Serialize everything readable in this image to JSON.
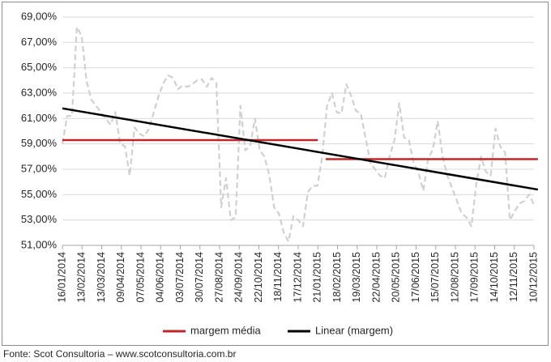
{
  "chart_data": {
    "type": "line",
    "title": "",
    "xlabel": "",
    "ylabel": "",
    "ylim": [
      51,
      69
    ],
    "y_ticks": [
      51,
      53,
      55,
      57,
      59,
      61,
      63,
      65,
      67,
      69
    ],
    "y_tick_labels": [
      "51,00%",
      "53,00%",
      "55,00%",
      "57,00%",
      "59,00%",
      "61,00%",
      "63,00%",
      "65,00%",
      "67,00%",
      "69,00%"
    ],
    "x_tick_labels": [
      "16/01/2014",
      "13/02/2014",
      "13/03/2014",
      "09/04/2014",
      "07/05/2014",
      "04/06/2014",
      "03/07/2014",
      "30/07/2014",
      "27/08/2014",
      "24/09/2014",
      "22/10/2014",
      "18/11/2014",
      "17/12/2014",
      "21/01/2015",
      "18/02/2015",
      "19/03/2015",
      "22/04/2015",
      "20/05/2015",
      "17/06/2015",
      "15/07/2015",
      "12/08/2015",
      "17/09/2015",
      "14/10/2015",
      "12/11/2015",
      "10/12/2015"
    ],
    "grid": "horizontal",
    "legend_position": "bottom",
    "series": [
      {
        "name": "",
        "style": "dashed",
        "color": "#d0d0d0",
        "values": [
          59.0,
          61.2,
          61.2,
          68.2,
          67.5,
          64.0,
          62.5,
          62.0,
          61.5,
          61.0,
          60.5,
          61.5,
          59.0,
          58.8,
          56.5,
          60.3,
          59.8,
          59.6,
          60.2,
          61.5,
          62.8,
          63.8,
          64.4,
          64.2,
          63.3,
          63.6,
          63.5,
          63.7,
          64.0,
          64.1,
          63.5,
          64.2,
          63.8,
          54.0,
          56.3,
          53.0,
          53.2,
          62.0,
          58.5,
          58.8,
          61.0,
          58.5,
          58.0,
          56.5,
          54.0,
          53.5,
          52.0,
          51.3,
          53.3,
          53.0,
          52.5,
          55.2,
          55.7,
          55.7,
          58.0,
          62.0,
          63.0,
          61.5,
          61.4,
          63.7,
          62.8,
          61.6,
          61.4,
          59.5,
          57.5,
          57.0,
          56.5,
          56.3,
          58.0,
          59.3,
          62.2,
          59.5,
          59.3,
          57.5,
          56.7,
          55.3,
          57.8,
          58.6,
          60.8,
          58.0,
          56.5,
          55.5,
          54.5,
          53.5,
          53.2,
          52.5,
          55.8,
          58.0,
          56.8,
          56.5,
          60.2,
          58.8,
          58.3,
          53.0,
          53.7,
          54.3,
          54.5,
          55.0,
          54.2
        ]
      },
      {
        "name": "margem média",
        "color": "#c0272d",
        "segments": [
          {
            "x_start": 0,
            "x_end": 13,
            "value": 59.3
          },
          {
            "x_start": 13.4,
            "x_end": 24.2,
            "value": 57.8
          }
        ]
      },
      {
        "name": "Linear (margem)",
        "color": "#000000",
        "trend": {
          "x_start": 0,
          "x_end": 24.2,
          "y_start": 61.8,
          "y_end": 55.4
        }
      }
    ]
  },
  "legend": {
    "items": [
      {
        "label": "margem média",
        "color": "#c0272d"
      },
      {
        "label": "Linear (margem)",
        "color": "#000000"
      }
    ]
  },
  "source": "Fonte: Scot Consultoria – www.scotconsultoria.com.br"
}
